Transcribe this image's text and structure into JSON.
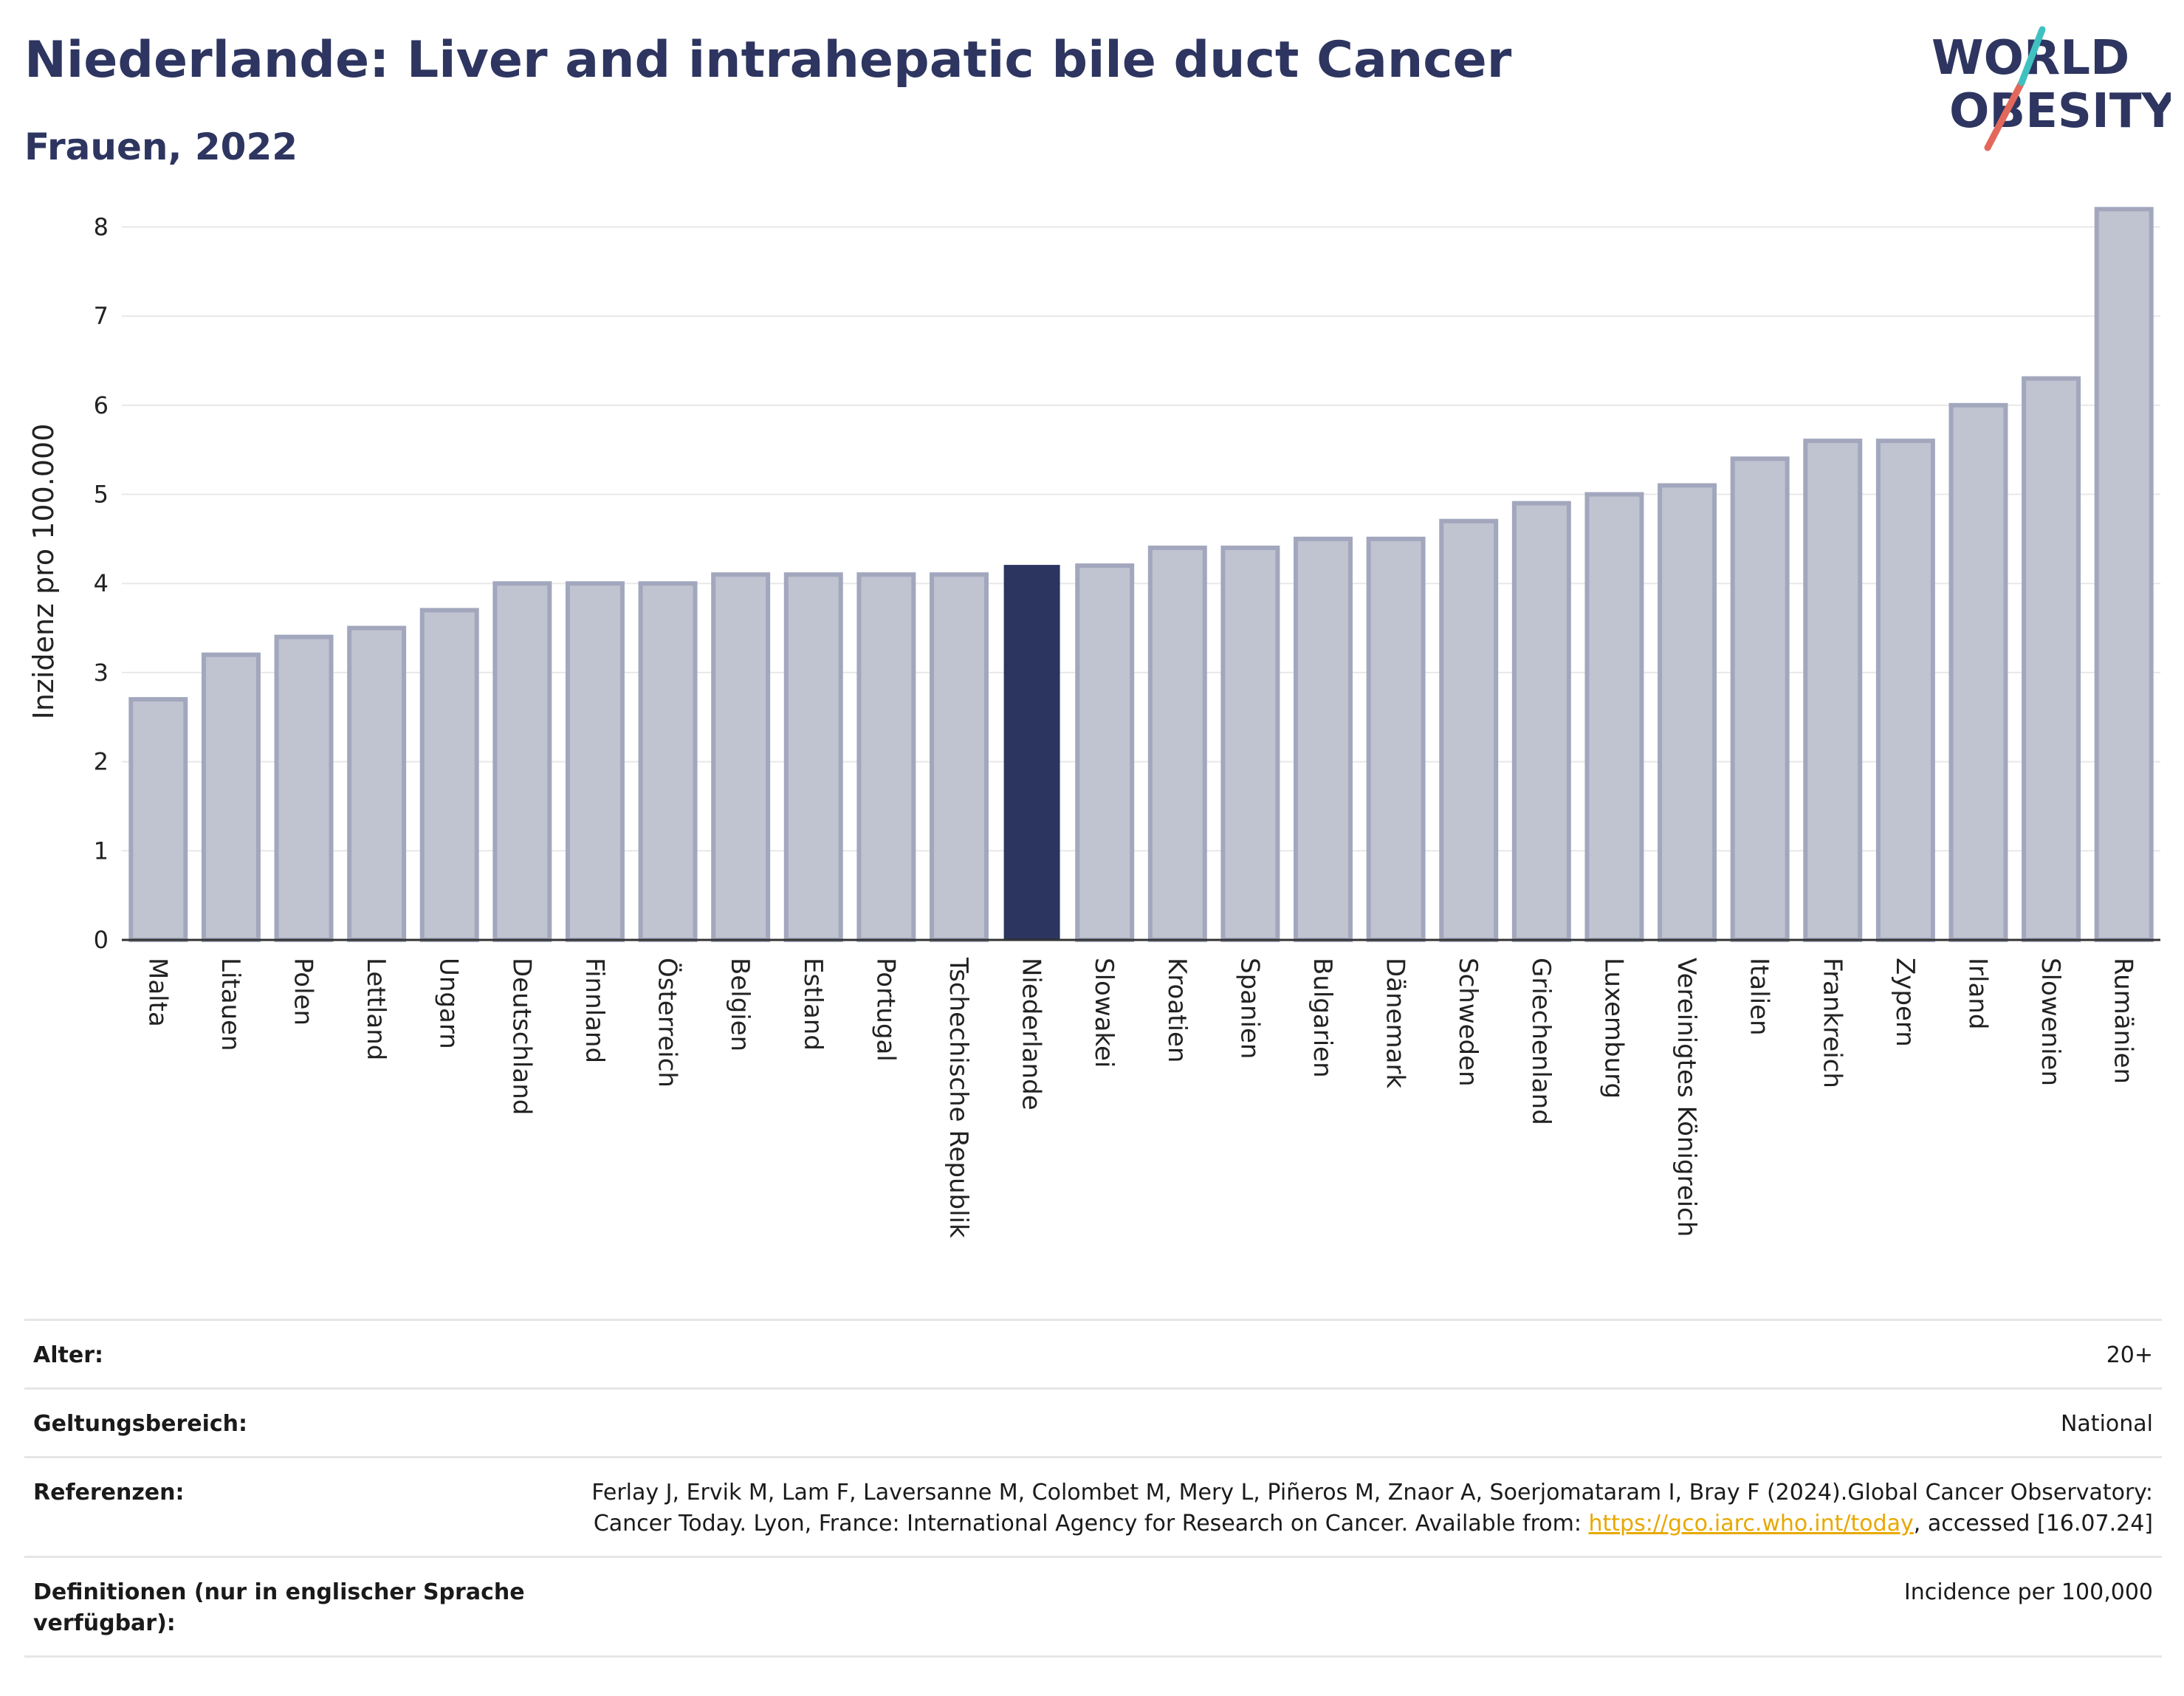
{
  "header": {
    "title": "Niederlande: Liver and intrahepatic bile duct Cancer",
    "subtitle": "Frauen, 2022"
  },
  "logo": {
    "line1": "WORLD",
    "line2": "OBESITY"
  },
  "colors": {
    "bar_default": "#c0c3d0",
    "bar_default_stroke": "#a2a7bd",
    "bar_highlight": "#2b355f",
    "title": "#2d3560",
    "link": "#e8a800",
    "logo_red": "#e2685c",
    "logo_teal": "#3fc1c0"
  },
  "chart_data": {
    "type": "bar",
    "ylabel": "Inzidenz pro 100.000",
    "ylim": [
      0,
      8.6
    ],
    "yticks": [
      0,
      1,
      2,
      3,
      4,
      5,
      6,
      7,
      8
    ],
    "grid": true,
    "highlight": "Niederlande",
    "categories": [
      "Malta",
      "Litauen",
      "Polen",
      "Lettland",
      "Ungarn",
      "Deutschland",
      "Finnland",
      "Österreich",
      "Belgien",
      "Estland",
      "Portugal",
      "Tschechische Republik",
      "Niederlande",
      "Slowakei",
      "Kroatien",
      "Spanien",
      "Bulgarien",
      "Dänemark",
      "Schweden",
      "Griechenland",
      "Luxemburg",
      "Vereinigtes Königreich",
      "Italien",
      "Frankreich",
      "Zypern",
      "Irland",
      "Slowenien",
      "Rumänien"
    ],
    "values": [
      2.7,
      3.2,
      3.4,
      3.5,
      3.7,
      4.0,
      4.0,
      4.0,
      4.1,
      4.1,
      4.1,
      4.1,
      4.2,
      4.2,
      4.4,
      4.4,
      4.5,
      4.5,
      4.7,
      4.9,
      5.0,
      5.1,
      5.4,
      5.6,
      5.6,
      6.0,
      6.3,
      8.2
    ]
  },
  "info": [
    {
      "label": "Alter:",
      "value": "20+"
    },
    {
      "label": "Geltungsbereich:",
      "value": "National"
    },
    {
      "label": "Referenzen:",
      "value_pre": "Ferlay J, Ervik M, Lam F, Laversanne M, Colombet M, Mery L, Piñeros M, Znaor A, Soerjomataram I, Bray F (2024).Global Cancer Observatory: Cancer Today. Lyon, France: International Agency for Research on Cancer. Available from: ",
      "link": "https://gco.iarc.who.int/today",
      "value_post": ", accessed [16.07.24]"
    },
    {
      "label": "Definitionen (nur in englischer Sprache verfügbar):",
      "value": "Incidence per 100,000"
    }
  ]
}
